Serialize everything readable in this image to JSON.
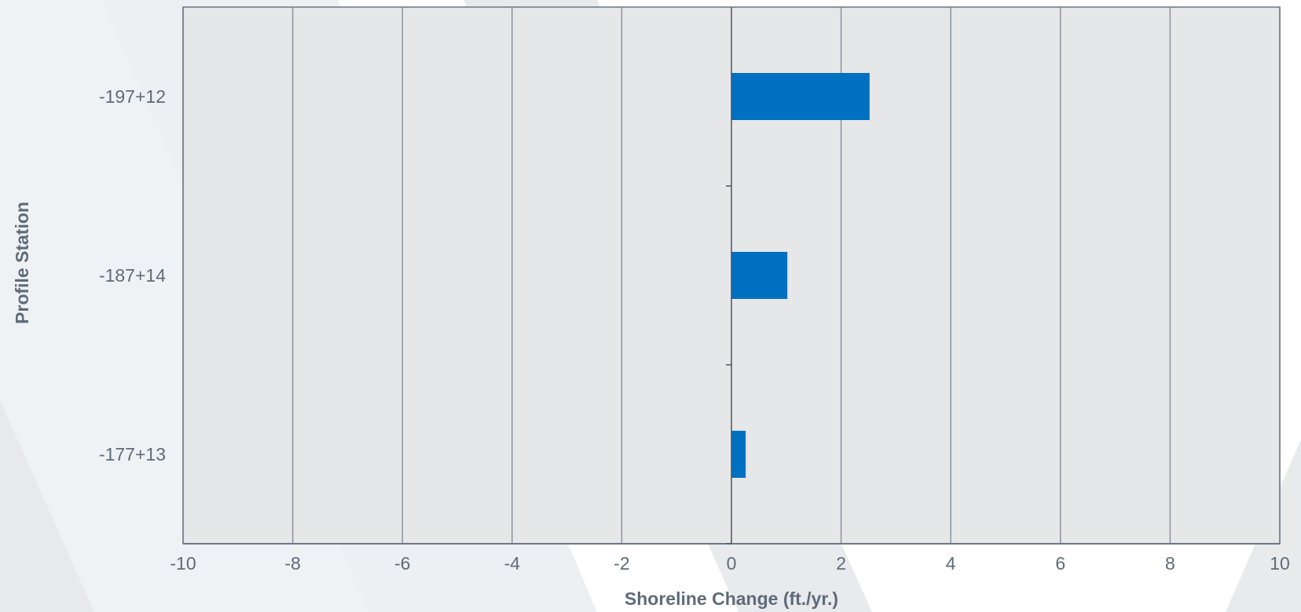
{
  "chart_data": {
    "type": "bar",
    "orientation": "horizontal",
    "categories": [
      "-197+12",
      "-187+14",
      "-177+13"
    ],
    "series": [
      {
        "values": [
          2.52,
          1.02,
          0.26
        ]
      }
    ],
    "xlabel": "Shoreline Change (ft./yr.)",
    "ylabel": "Profile Station",
    "xlim": [
      -10,
      10
    ],
    "xticks": [
      -10,
      -8,
      -6,
      -4,
      -2,
      0,
      2,
      4,
      6,
      8,
      10
    ],
    "xtick_labels": [
      "-10",
      "-8",
      "-6",
      "-4",
      "-2",
      "0",
      "2",
      "4",
      "6",
      "8",
      "10"
    ],
    "grid": "vertical",
    "legend": "none",
    "colors": {
      "bar": "#0070c0",
      "plot_background": "#e6e7e9",
      "gridline": "#8c939c",
      "axis_text": "#5f6b78",
      "page_shape_light": "#eef1f3",
      "page_shape_mid": "#e8ebee"
    }
  }
}
